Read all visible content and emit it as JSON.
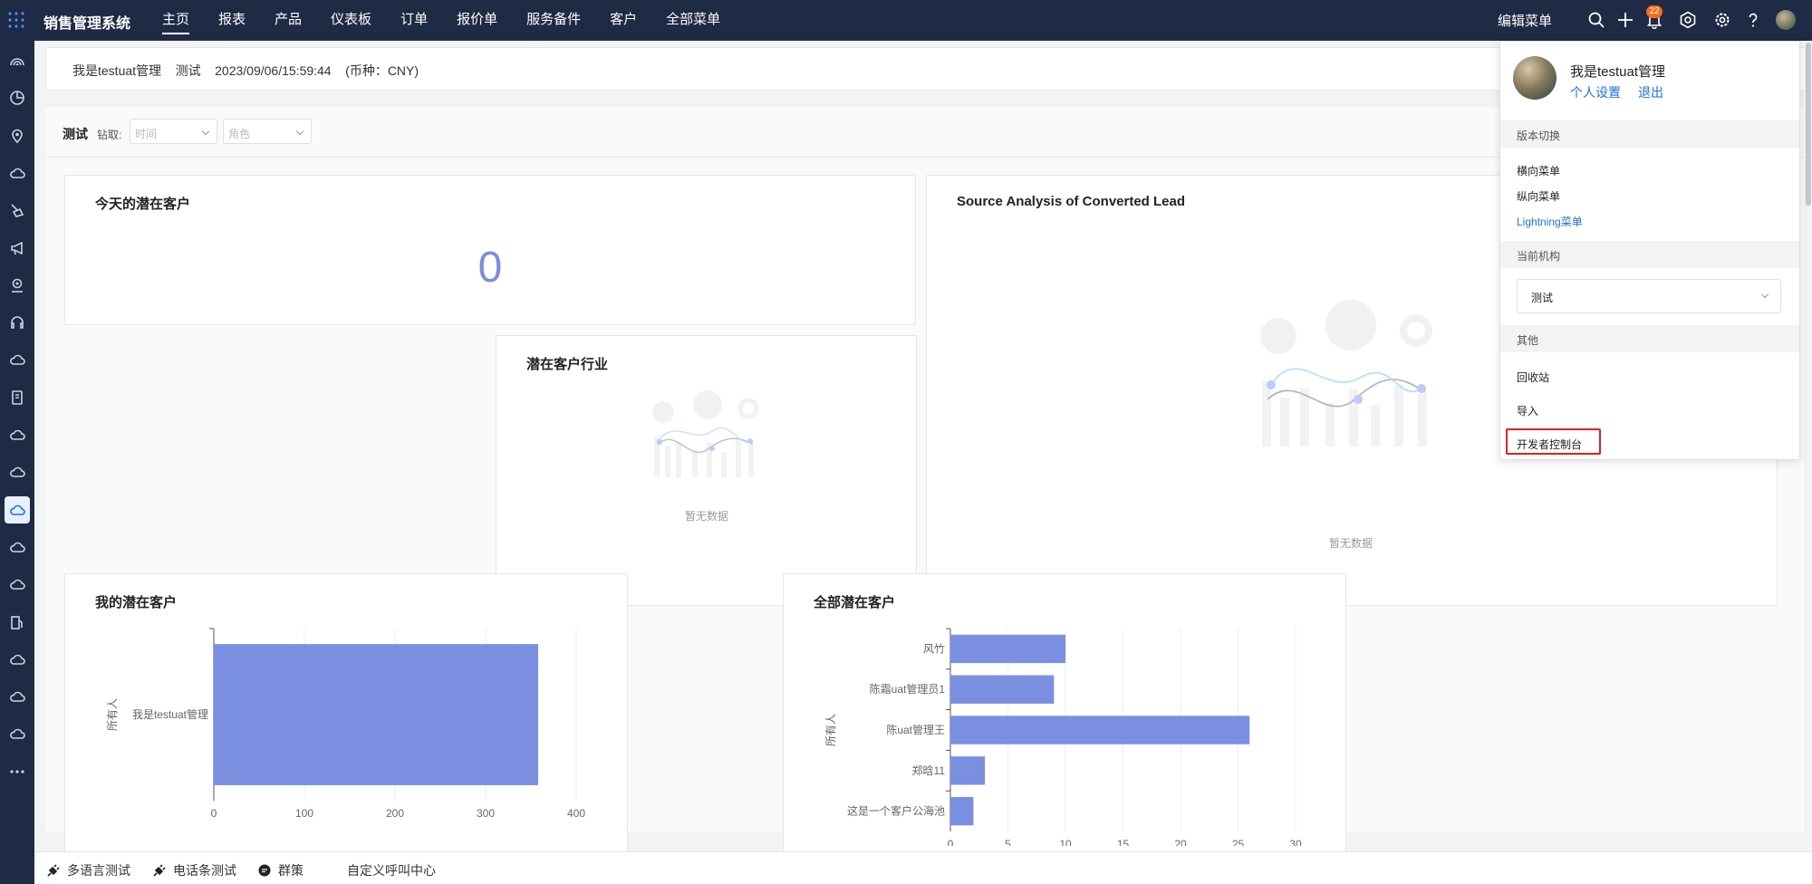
{
  "topbar": {
    "app_title": "销售管理系统",
    "nav": [
      "主页",
      "报表",
      "产品",
      "仪表板",
      "订单",
      "报价单",
      "服务备件",
      "客户",
      "全部菜单"
    ],
    "active_nav": "主页",
    "edit_menu": "编辑菜单",
    "notification_count": "22",
    "icons": [
      "search-icon",
      "plus-icon",
      "bell-icon",
      "hexagon-gear-icon",
      "gear-icon",
      "help-icon",
      "avatar"
    ]
  },
  "sidebar": {
    "icons": [
      "rainbow-icon",
      "pie-icon",
      "location-pin-icon",
      "cloud-icon",
      "broom-icon",
      "megaphone-icon",
      "pin-icon",
      "headset-icon",
      "cloud-icon",
      "book-icon",
      "cloud-icon",
      "cloud-icon",
      "cloud-icon",
      "cloud-icon",
      "cloud-icon",
      "fuel-icon",
      "cloud-icon",
      "cloud-icon",
      "cloud-icon",
      "more-icon"
    ],
    "active_index": 12
  },
  "infobar": {
    "text": "我是testuat管理    测试    2023/09/06/15:59:44    (币种：CNY)"
  },
  "filter": {
    "title": "测试",
    "drill_label": "钻取:",
    "time_placeholder": "时间",
    "role_placeholder": "角色"
  },
  "cards": {
    "today": {
      "title": "今天的潜在客户",
      "value": "0"
    },
    "industry": {
      "title": "潜在客户行业",
      "nodata": "暂无数据"
    },
    "source": {
      "title": "Source Analysis of Converted Lead",
      "nodata": "暂无数据"
    },
    "mine": {
      "title": "我的潜在客户"
    },
    "all": {
      "title": "全部潜在客户"
    }
  },
  "chart_data": [
    {
      "type": "bar",
      "orientation": "horizontal",
      "title": "我的潜在客户",
      "ylabel": "所有人",
      "categories": [
        "我是testuat管理"
      ],
      "values": [
        358
      ],
      "xlim": [
        0,
        400
      ],
      "xticks": [
        "0",
        "100",
        "200",
        "300",
        "400"
      ],
      "grid": true,
      "color": "#7b8fe0"
    },
    {
      "type": "bar",
      "orientation": "horizontal",
      "title": "全部潜在客户",
      "ylabel": "所有人",
      "categories": [
        "风竹",
        "陈霜uat管理员1",
        "陈uat管理王",
        "郑晗11",
        "这是一个客户公海池"
      ],
      "values": [
        10,
        9,
        26,
        3,
        2
      ],
      "xlim": [
        0,
        30
      ],
      "xticks": [
        "0",
        "5",
        "10",
        "15",
        "20",
        "25",
        "30"
      ],
      "grid": true,
      "color": "#7b8fe0"
    }
  ],
  "dropdown": {
    "user_name": "我是testuat管理",
    "personal_settings": "个人设置",
    "logout": "退出",
    "version_switch": "版本切换",
    "menu_options": [
      "横向菜单",
      "纵向菜单",
      "Lightning菜单"
    ],
    "active_menu_option": "Lightning菜单",
    "current_org": "当前机构",
    "org_value": "测试",
    "other": "其他",
    "other_items": [
      "回收站",
      "导入",
      "开发者控制台"
    ]
  },
  "bottombar": {
    "items": [
      "多语言测试",
      "电话条测试",
      "群策",
      "自定义呼叫中心"
    ]
  },
  "colors": {
    "topbar": "#1f2a44",
    "accent": "#1e6fd9",
    "bar": "#7b8fe0",
    "badge": "#f36b1c",
    "highlight": "#e02020"
  }
}
